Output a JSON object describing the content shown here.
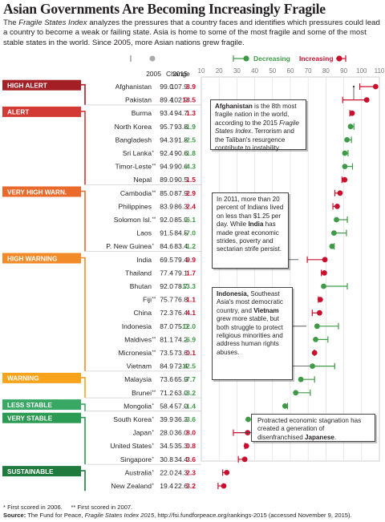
{
  "title": "Asian Governments Are Becoming Increasingly Fragile",
  "intro": {
    "lead": "The ",
    "index_name": "Fragile States Index",
    "rest": " analyzes the pressures that a country faces and identifies which pressures could lead a country to become a weak or failing state. Asia is home to some of the most fragile and some of the most stable states in the world. Since 2005, more Asian nations grew fragile."
  },
  "colors": {
    "decrease": "#3f9a47",
    "increase": "#c8102e",
    "high_alert": "#a31f25",
    "alert": "#d33a35",
    "very_high_warning": "#ea6a2b",
    "high_warning": "#f28a28",
    "warning": "#f7a31c",
    "less_stable": "#3aa865",
    "very_stable": "#2b9a52",
    "sustainable": "#1f7a3e"
  },
  "footnotes": {
    "first_2006": "* First scored in 2006.",
    "first_2007": "** First scored in 2007.",
    "source_label": "Source:",
    "source_text_a": " The Fund for Peace, ",
    "source_italic": "Fragile States Index 2015",
    "source_text_b": ", http://fsi.fundforpeace.org/rankings-2015 (accessed November 9, 2015)."
  },
  "annotations": [
    {
      "bold_pre": "Afghanistan",
      "text_a": " is the 8th most fragile nation in the world, according to the 2015 ",
      "italic": "Fragile States Index",
      "text_b": ". Terrorism and the Taliban's resurgence contribute to instability."
    },
    {
      "text_a": "In 2011, more than 20 percent of Indians lived on less than $1.25 per day. While ",
      "bold": "India",
      "text_b": " has made great economic strides, poverty and sectarian strife persist."
    },
    {
      "bold_pre": "Indonesia,",
      "text_a": " Southeast Asia's most democratic country, and ",
      "bold": "Vietnam",
      "text_b": " grew more stable, but both struggle to protect religious minorities and address human rights abuses."
    },
    {
      "text_a": "Protracted economic stagnation has created a generation of disenfranchised ",
      "bold": "Japanese",
      "text_b": "."
    }
  ],
  "chart_data": {
    "type": "dot",
    "x_axis": {
      "min": 10,
      "max": 110,
      "ticks": [
        10,
        20,
        30,
        40,
        50,
        60,
        70,
        80,
        90,
        100,
        110
      ]
    },
    "columns": {
      "y2005": "2005",
      "y2015": "2015",
      "change": "Change"
    },
    "legend": {
      "decreasing": "Decreasing",
      "increasing": "Increasing"
    },
    "categories": [
      {
        "label": "HIGH ALERT",
        "color_key": "high_alert",
        "countries": [
          {
            "name": "Afghanistan",
            "mark": "",
            "y2005": 99.0,
            "y2015": 107.9,
            "change": "8.9"
          },
          {
            "name": "Pakistan",
            "mark": "",
            "y2005": 89.4,
            "y2015": 102.9,
            "change": "13.5"
          }
        ]
      },
      {
        "label": "ALERT",
        "color_key": "alert",
        "countries": [
          {
            "name": "Burma",
            "mark": "",
            "y2005": 93.4,
            "y2015": 94.7,
            "change": "1.3"
          },
          {
            "name": "North Korea",
            "mark": "",
            "y2005": 95.7,
            "y2015": 93.8,
            "change": "-1.9"
          },
          {
            "name": "Bangladesh",
            "mark": "",
            "y2005": 94.3,
            "y2015": 91.8,
            "change": "-2.5"
          },
          {
            "name": "Sri Lanka",
            "mark": "*",
            "y2005": 92.4,
            "y2015": 90.6,
            "change": "-1.8"
          },
          {
            "name": "Timor-Leste",
            "mark": "**",
            "y2005": 94.9,
            "y2015": 90.6,
            "change": "-4.3"
          },
          {
            "name": "Nepal",
            "mark": "",
            "y2005": 89.0,
            "y2015": 90.5,
            "change": "1.5"
          }
        ]
      },
      {
        "label": "VERY HIGH WARN.",
        "color_key": "very_high_warning",
        "countries": [
          {
            "name": "Cambodia",
            "mark": "**",
            "y2005": 85.0,
            "y2015": 87.9,
            "change": "2.9"
          },
          {
            "name": "Philippines",
            "mark": "",
            "y2005": 83.9,
            "y2015": 86.3,
            "change": "2.4"
          },
          {
            "name": "Solomon Isl.",
            "mark": "**",
            "y2005": 92.0,
            "y2015": 85.9,
            "change": "-6.1"
          },
          {
            "name": "Laos",
            "mark": "",
            "y2005": 91.5,
            "y2015": 84.5,
            "change": "-7.0"
          },
          {
            "name": "P. New Guinea",
            "mark": "*",
            "y2005": 84.6,
            "y2015": 83.4,
            "change": "-1.2"
          }
        ]
      },
      {
        "label": "HIGH WARNING",
        "color_key": "high_warning",
        "countries": [
          {
            "name": "India",
            "mark": "",
            "y2005": 69.5,
            "y2015": 79.4,
            "change": "9.9"
          },
          {
            "name": "Thailand",
            "mark": "",
            "y2005": 77.4,
            "y2015": 79.1,
            "change": "1.7"
          },
          {
            "name": "Bhutan",
            "mark": "",
            "y2005": 92.0,
            "y2015": 78.7,
            "change": "-13.3"
          },
          {
            "name": "Fiji",
            "mark": "**",
            "y2005": 75.7,
            "y2015": 76.8,
            "change": "1.1"
          },
          {
            "name": "China",
            "mark": "",
            "y2005": 72.3,
            "y2015": 76.4,
            "change": "4.1"
          },
          {
            "name": "Indonesia",
            "mark": "",
            "y2005": 87.0,
            "y2015": 75.0,
            "change": "-12.0"
          },
          {
            "name": "Maldives",
            "mark": "**",
            "y2005": 81.1,
            "y2015": 74.2,
            "change": "-6.9"
          },
          {
            "name": "Micronesia",
            "mark": "**",
            "y2005": 73.5,
            "y2015": 73.6,
            "change": "0.1"
          },
          {
            "name": "Vietnam",
            "mark": "",
            "y2005": 84.9,
            "y2015": 72.4,
            "change": "-12.5"
          }
        ]
      },
      {
        "label": "WARNING",
        "color_key": "warning",
        "countries": [
          {
            "name": "Malaysia",
            "mark": "",
            "y2005": 73.6,
            "y2015": 65.9,
            "change": "-7.7"
          },
          {
            "name": "Brunei",
            "mark": "**",
            "y2005": 71.2,
            "y2015": 63.0,
            "change": "-8.2"
          }
        ]
      },
      {
        "label": "LESS STABLE",
        "color_key": "less_stable",
        "countries": [
          {
            "name": "Mongolia",
            "mark": "*",
            "y2005": 58.4,
            "y2015": 57.0,
            "change": "-1.4"
          }
        ]
      },
      {
        "label": "VERY STABLE",
        "color_key": "very_stable",
        "countries": [
          {
            "name": "South Korea",
            "mark": "*",
            "y2005": 39.9,
            "y2015": 36.3,
            "change": "-3.6"
          },
          {
            "name": "Japan",
            "mark": "*",
            "y2005": 28.0,
            "y2015": 36.0,
            "change": "8.0"
          },
          {
            "name": "United States",
            "mark": "*",
            "y2005": 34.5,
            "y2015": 35.3,
            "change": "0.8"
          },
          {
            "name": "Singapore",
            "mark": "*",
            "y2005": 30.8,
            "y2015": 34.4,
            "change": "3.6"
          }
        ]
      },
      {
        "label": "SUSTAINABLE",
        "color_key": "sustainable",
        "countries": [
          {
            "name": "Australia",
            "mark": "*",
            "y2005": 22.0,
            "y2015": 24.3,
            "change": "2.3"
          },
          {
            "name": "New Zealand",
            "mark": "*",
            "y2005": 19.4,
            "y2015": 22.6,
            "change": "3.2"
          }
        ]
      }
    ]
  }
}
